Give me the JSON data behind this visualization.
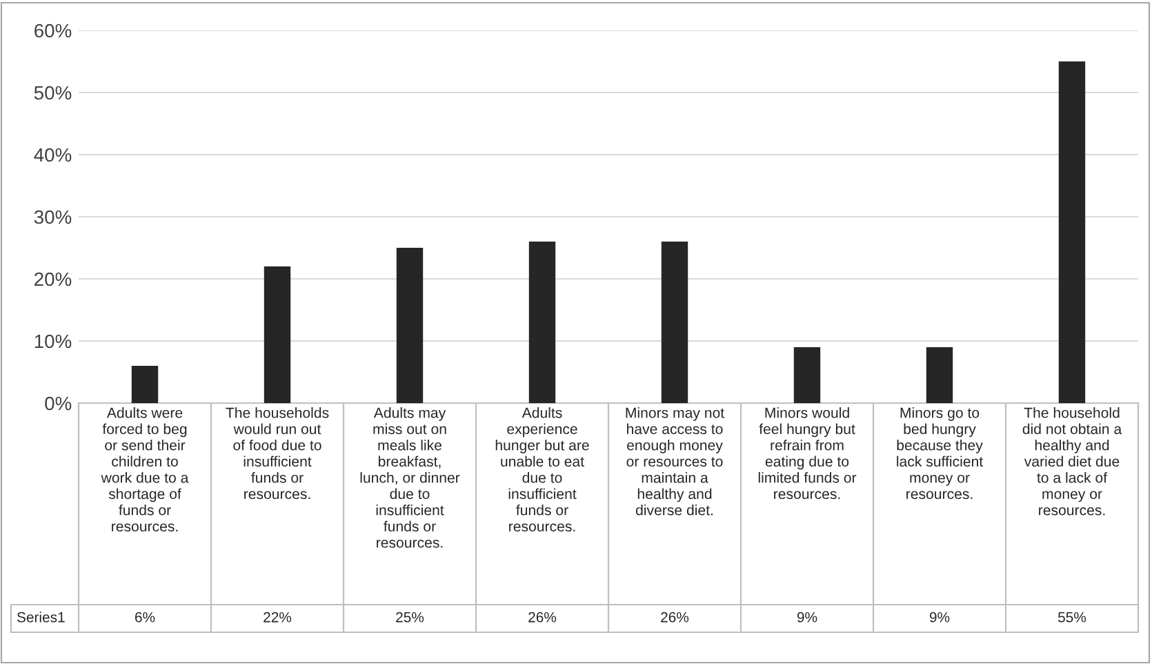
{
  "chart_data": {
    "type": "bar",
    "categories": [
      "Adults were\nforced to beg\nor send their\nchildren to\nwork due to a\nshortage of\nfunds or\nresources.",
      "The households\nwould run out\nof food due to\ninsufficient\nfunds or\nresources.",
      "Adults may\nmiss out on\nmeals like\nbreakfast,\nlunch, or dinner\ndue to\ninsufficient\nfunds or\nresources.",
      "Adults\nexperience\nhunger but are\nunable to eat\ndue to\ninsufficient\nfunds or\nresources.",
      "Minors may not\nhave access to\nenough money\nor resources to\nmaintain a\nhealthy and\ndiverse diet.",
      "Minors would\nfeel hungry but\nrefrain from\neating due to\nlimited funds or\nresources.",
      "Minors go to\nbed hungry\nbecause they\nlack sufficient\nmoney or\nresources.",
      "The household\ndid not obtain a\nhealthy and\nvaried diet due\nto a lack of\nmoney or\nresources."
    ],
    "series": [
      {
        "name": "Series1",
        "color": "#262626",
        "values": [
          6,
          22,
          25,
          26,
          26,
          9,
          9,
          55
        ],
        "value_labels": [
          "6%",
          "22%",
          "25%",
          "26%",
          "26%",
          "9%",
          "9%",
          "55%"
        ]
      }
    ],
    "ylim": [
      0,
      60
    ],
    "yticks": [
      {
        "value": 0,
        "label": "0%"
      },
      {
        "value": 10,
        "label": "10%"
      },
      {
        "value": 20,
        "label": "20%"
      },
      {
        "value": 30,
        "label": "30%"
      },
      {
        "value": 40,
        "label": "40%"
      },
      {
        "value": 50,
        "label": "50%"
      },
      {
        "value": 60,
        "label": "60%"
      }
    ],
    "grid": "y"
  }
}
